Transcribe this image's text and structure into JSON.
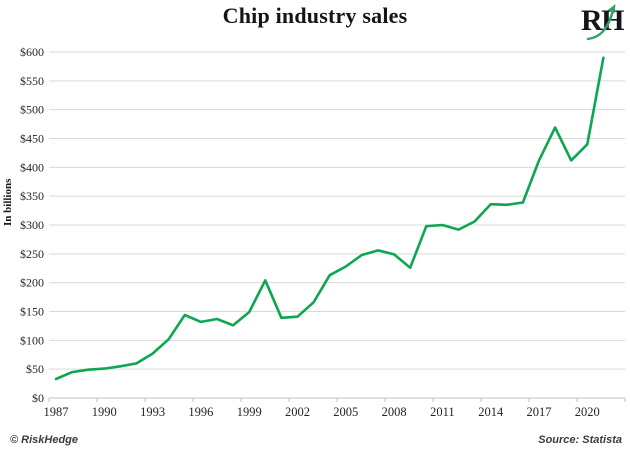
{
  "header": {
    "title": "Chip industry sales",
    "logo_text": "RH"
  },
  "ylabel": "In billions",
  "footer": {
    "copyright": "© RiskHedge",
    "source": "Source: Statista"
  },
  "colors": {
    "line_green": "#0ca750",
    "gridline": "#d9d9d9",
    "axis": "#c2c2c2",
    "logo_arrow_green": "#2aa567"
  },
  "chart_data": {
    "type": "line",
    "title": "Chip industry sales",
    "xlabel": "",
    "ylabel": "In billions",
    "ylim": [
      0,
      600
    ],
    "ytick_step": 50,
    "ytick_prefix": "$",
    "xticks": [
      1987,
      1990,
      1993,
      1996,
      1999,
      2002,
      2005,
      2008,
      2011,
      2014,
      2017,
      2020
    ],
    "grid": true,
    "legend_position": "none",
    "line_color": "#0ca750",
    "series": [
      {
        "name": "Chip industry sales (in billions of USD)",
        "x": [
          1987,
          1988,
          1989,
          1990,
          1991,
          1992,
          1993,
          1994,
          1995,
          1996,
          1997,
          1998,
          1999,
          2000,
          2001,
          2002,
          2003,
          2004,
          2005,
          2006,
          2007,
          2008,
          2009,
          2010,
          2011,
          2012,
          2013,
          2014,
          2015,
          2016,
          2017,
          2018,
          2019,
          2020,
          2021
        ],
        "values": [
          33,
          45,
          49,
          51,
          55,
          60,
          77,
          102,
          144,
          132,
          137,
          126,
          149,
          204,
          139,
          141,
          166,
          213,
          228,
          248,
          256,
          249,
          226,
          298,
          300,
          292,
          306,
          336,
          335,
          339,
          412,
          469,
          412,
          440,
          590
        ]
      }
    ]
  }
}
